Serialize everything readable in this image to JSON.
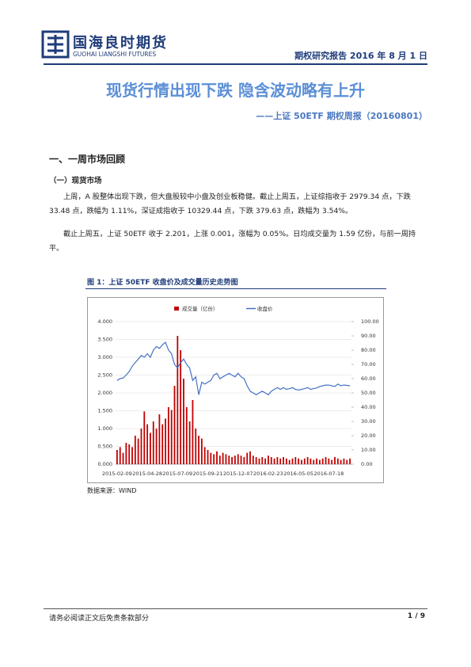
{
  "header": {
    "company": "国海良时期货",
    "company_en": "GUOHAI LIANGSHI FUTURES",
    "report": "期权研究报告 2016 年 8 月 1 日"
  },
  "title": "现货行情出现下跌 隐含波动略有上升",
  "subtitle": "——上证 50ETF 期权周报（20160801）",
  "section": "一、一周市场回顾",
  "subsection": "（一）现货市场",
  "paragraphs": [
    "上周，A 股整体出现下跌，但大盘股较中小盘及创业板稳健。截止上周五，上证综指收于 2979.34 点，下跌 33.48 点，跌幅为 1.11%，深证成指收于 10329.44 点，下跌 379.63 点，跌幅为 3.54%。",
    "截止上周五，上证 50ETF 收于 2.201，上涨 0.001，涨幅为 0.05%。日均成交量为 1.59 亿份，与前一周持平。"
  ],
  "figure_caption": "图 1：上证 50ETF 收盘价及成交量历史走势图",
  "source": "数据来源：WIND",
  "footer": {
    "disclaimer": "请务必阅读正文后免责条款部分",
    "page": "1 / 9"
  },
  "chart_data": {
    "type": "bar_line",
    "grid": true,
    "categories": [
      "2015-02-09",
      null,
      null,
      null,
      null,
      null,
      null,
      null,
      null,
      null,
      "2015-04-28",
      null,
      null,
      null,
      null,
      null,
      null,
      null,
      null,
      null,
      "2015-07-09",
      null,
      null,
      null,
      null,
      null,
      null,
      null,
      null,
      null,
      "2015-09-21",
      null,
      null,
      null,
      null,
      null,
      null,
      null,
      null,
      null,
      "2015-12-07",
      null,
      null,
      null,
      null,
      null,
      null,
      null,
      null,
      null,
      "2016-02-23",
      null,
      null,
      null,
      null,
      null,
      null,
      null,
      null,
      null,
      "2016-05-05",
      null,
      null,
      null,
      null,
      null,
      null,
      null,
      null,
      null,
      "2016-07-18",
      null,
      null,
      null,
      null,
      null,
      null,
      null
    ],
    "series": [
      {
        "name": "成交量（亿份）",
        "type": "bar",
        "axis": "y2",
        "color": "#c00000",
        "values": [
          10,
          12,
          8,
          15,
          14,
          12,
          20,
          18,
          25,
          37,
          28,
          22,
          30,
          25,
          35,
          28,
          32,
          40,
          38,
          55,
          90,
          80,
          60,
          40,
          30,
          45,
          25,
          20,
          18,
          12,
          10,
          8,
          7,
          9,
          6,
          8,
          7,
          6,
          5,
          6,
          7,
          6,
          5,
          8,
          9,
          6,
          5,
          4,
          5,
          4,
          6,
          5,
          4,
          5,
          4,
          5,
          4,
          3,
          4,
          5,
          4,
          3,
          4,
          5,
          4,
          3,
          4,
          3,
          4,
          5,
          4,
          3,
          5,
          4,
          3,
          4,
          3,
          4
        ]
      },
      {
        "name": "收盘价",
        "type": "line",
        "color": "#4472c4",
        "values": [
          2.35,
          2.4,
          2.42,
          2.5,
          2.6,
          2.75,
          2.85,
          2.95,
          3.05,
          3.0,
          3.1,
          3.0,
          3.2,
          3.3,
          3.25,
          3.35,
          3.42,
          3.2,
          3.1,
          2.8,
          2.7,
          2.85,
          2.95,
          2.8,
          2.7,
          2.35,
          2.45,
          1.95,
          2.3,
          2.25,
          2.3,
          2.35,
          2.5,
          2.55,
          2.4,
          2.45,
          2.5,
          2.55,
          2.5,
          2.45,
          2.55,
          2.45,
          2.4,
          2.2,
          2.05,
          2.0,
          1.95,
          2.0,
          2.05,
          2.0,
          1.95,
          2.05,
          2.1,
          2.15,
          2.1,
          2.15,
          2.1,
          2.12,
          2.15,
          2.1,
          2.08,
          2.1,
          2.12,
          2.15,
          2.1,
          2.12,
          2.14,
          2.18,
          2.2,
          2.22,
          2.22,
          2.2,
          2.18,
          2.25,
          2.2,
          2.22,
          2.21,
          2.2
        ]
      }
    ],
    "ylim": [
      0,
      4
    ],
    "yticks": [
      {
        "value": 0,
        "label": "0.000"
      },
      {
        "value": 0.5,
        "label": "0.500"
      },
      {
        "value": 1,
        "label": "1.000"
      },
      {
        "value": 1.5,
        "label": "1.500"
      },
      {
        "value": 2,
        "label": "2.000"
      },
      {
        "value": 2.5,
        "label": "2.500"
      },
      {
        "value": 3,
        "label": "3.000"
      },
      {
        "value": 3.5,
        "label": "3.500"
      },
      {
        "value": 4,
        "label": "4.000"
      }
    ],
    "y2lim": [
      0,
      100
    ],
    "y2ticks": [
      {
        "value": 0,
        "label": "0.00"
      },
      {
        "value": 10,
        "label": "10.00"
      },
      {
        "value": 20,
        "label": "20.00"
      },
      {
        "value": 30,
        "label": "30.00"
      },
      {
        "value": 40,
        "label": "40.00"
      },
      {
        "value": 50,
        "label": "50.00"
      },
      {
        "value": 60,
        "label": "60.00"
      },
      {
        "value": 70,
        "label": "70.00"
      },
      {
        "value": 80,
        "label": "80.00"
      },
      {
        "value": 90,
        "label": "90.00"
      },
      {
        "value": 100,
        "label": "100.00"
      }
    ]
  }
}
